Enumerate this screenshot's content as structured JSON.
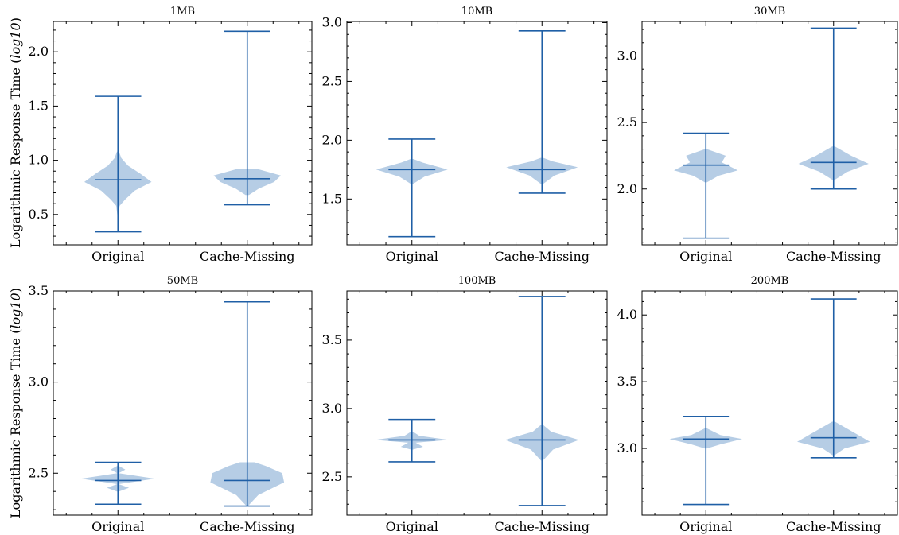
{
  "chart_data": [
    {
      "type": "violin",
      "title": "1MB",
      "ylabel": "Logarithmic Response Time (log10)",
      "categories": [
        "Original",
        "Cache-Missing"
      ],
      "ylim": [
        0.22,
        2.28
      ],
      "yticks": [
        "0.5",
        "1.0",
        "1.5",
        "2.0"
      ],
      "series": [
        {
          "min": 0.34,
          "median": 0.82,
          "max": 1.59,
          "width": 0.52,
          "profile": [
            [
              0.5,
              0.02
            ],
            [
              0.58,
              0.05
            ],
            [
              0.64,
              0.22
            ],
            [
              0.72,
              0.5
            ],
            [
              0.8,
              1.0
            ],
            [
              0.88,
              0.65
            ],
            [
              0.95,
              0.3
            ],
            [
              1.02,
              0.1
            ],
            [
              1.08,
              0.03
            ]
          ]
        },
        {
          "min": 0.59,
          "median": 0.83,
          "max": 2.19,
          "width": 0.52,
          "profile": [
            [
              0.68,
              0.05
            ],
            [
              0.74,
              0.35
            ],
            [
              0.8,
              0.8
            ],
            [
              0.86,
              1.0
            ],
            [
              0.92,
              0.3
            ]
          ]
        }
      ]
    },
    {
      "type": "violin",
      "title": "10MB",
      "ylabel": "",
      "categories": [
        "Original",
        "Cache-Missing"
      ],
      "ylim": [
        1.11,
        3.01
      ],
      "yticks": [
        "1.5",
        "2.0",
        "2.5",
        "3.0"
      ],
      "series": [
        {
          "min": 1.18,
          "median": 1.75,
          "max": 2.01,
          "width": 0.55,
          "profile": [
            [
              1.63,
              0.04
            ],
            [
              1.69,
              0.35
            ],
            [
              1.75,
              1.0
            ],
            [
              1.81,
              0.3
            ],
            [
              1.84,
              0.04
            ]
          ]
        },
        {
          "min": 1.55,
          "median": 1.75,
          "max": 2.93,
          "width": 0.55,
          "profile": [
            [
              1.63,
              0.04
            ],
            [
              1.7,
              0.35
            ],
            [
              1.77,
              1.0
            ],
            [
              1.82,
              0.3
            ],
            [
              1.85,
              0.04
            ]
          ]
        }
      ]
    },
    {
      "type": "violin",
      "title": "30MB",
      "ylabel": "",
      "categories": [
        "Original",
        "Cache-Missing"
      ],
      "ylim": [
        1.58,
        3.26
      ],
      "yticks": [
        "2.0",
        "2.5",
        "3.0"
      ],
      "series": [
        {
          "min": 1.63,
          "median": 2.18,
          "max": 2.42,
          "width": 0.5,
          "profile": [
            [
              2.05,
              0.03
            ],
            [
              2.1,
              0.4
            ],
            [
              2.14,
              1.0
            ],
            [
              2.2,
              0.5
            ],
            [
              2.25,
              0.62
            ],
            [
              2.3,
              0.03
            ]
          ]
        },
        {
          "min": 2.0,
          "median": 2.2,
          "max": 3.21,
          "width": 0.55,
          "profile": [
            [
              2.07,
              0.04
            ],
            [
              2.13,
              0.4
            ],
            [
              2.19,
              1.0
            ],
            [
              2.25,
              0.5
            ],
            [
              2.32,
              0.04
            ]
          ]
        }
      ]
    },
    {
      "type": "violin",
      "title": "50MB",
      "ylabel": "Logarithmic Response Time (log10)",
      "categories": [
        "Original",
        "Cache-Missing"
      ],
      "ylim": [
        2.27,
        3.5
      ],
      "yticks": [
        "2.5",
        "3.0",
        "3.5"
      ],
      "series": [
        {
          "min": 2.33,
          "median": 2.46,
          "max": 2.56,
          "width": 0.57,
          "profile": [
            [
              2.4,
              0.03
            ],
            [
              2.42,
              0.3
            ],
            [
              2.44,
              0.02
            ],
            [
              2.47,
              1.0
            ],
            [
              2.5,
              0.02
            ],
            [
              2.52,
              0.2
            ],
            [
              2.54,
              0.02
            ]
          ]
        },
        {
          "min": 2.32,
          "median": 2.46,
          "max": 3.44,
          "width": 0.57,
          "profile": [
            [
              2.32,
              0.02
            ],
            [
              2.38,
              0.3
            ],
            [
              2.45,
              1.0
            ],
            [
              2.5,
              0.95
            ],
            [
              2.54,
              0.5
            ],
            [
              2.56,
              0.2
            ]
          ]
        }
      ]
    },
    {
      "type": "violin",
      "title": "100MB",
      "ylabel": "",
      "categories": [
        "Original",
        "Cache-Missing"
      ],
      "ylim": [
        2.22,
        3.86
      ],
      "yticks": [
        "2.5",
        "3.0",
        "3.5"
      ],
      "series": [
        {
          "min": 2.61,
          "median": 2.77,
          "max": 2.92,
          "width": 0.57,
          "profile": [
            [
              2.7,
              0.03
            ],
            [
              2.72,
              0.3
            ],
            [
              2.75,
              0.1
            ],
            [
              2.77,
              1.0
            ],
            [
              2.8,
              0.2
            ],
            [
              2.83,
              0.03
            ]
          ]
        },
        {
          "min": 2.29,
          "median": 2.77,
          "max": 3.82,
          "width": 0.57,
          "profile": [
            [
              2.62,
              0.03
            ],
            [
              2.7,
              0.3
            ],
            [
              2.77,
              1.0
            ],
            [
              2.83,
              0.25
            ],
            [
              2.88,
              0.03
            ]
          ]
        }
      ]
    },
    {
      "type": "violin",
      "title": "200MB",
      "ylabel": "",
      "categories": [
        "Original",
        "Cache-Missing"
      ],
      "ylim": [
        2.5,
        4.18
      ],
      "yticks": [
        "3.0",
        "3.5",
        "4.0"
      ],
      "series": [
        {
          "min": 2.58,
          "median": 3.07,
          "max": 3.24,
          "width": 0.57,
          "profile": [
            [
              3.0,
              0.03
            ],
            [
              3.03,
              0.4
            ],
            [
              3.07,
              1.0
            ],
            [
              3.1,
              0.4
            ],
            [
              3.15,
              0.03
            ]
          ]
        },
        {
          "min": 2.93,
          "median": 3.08,
          "max": 4.12,
          "width": 0.57,
          "profile": [
            [
              2.95,
              0.03
            ],
            [
              3.0,
              0.3
            ],
            [
              3.05,
              1.0
            ],
            [
              3.12,
              0.55
            ],
            [
              3.2,
              0.04
            ]
          ]
        }
      ]
    }
  ]
}
